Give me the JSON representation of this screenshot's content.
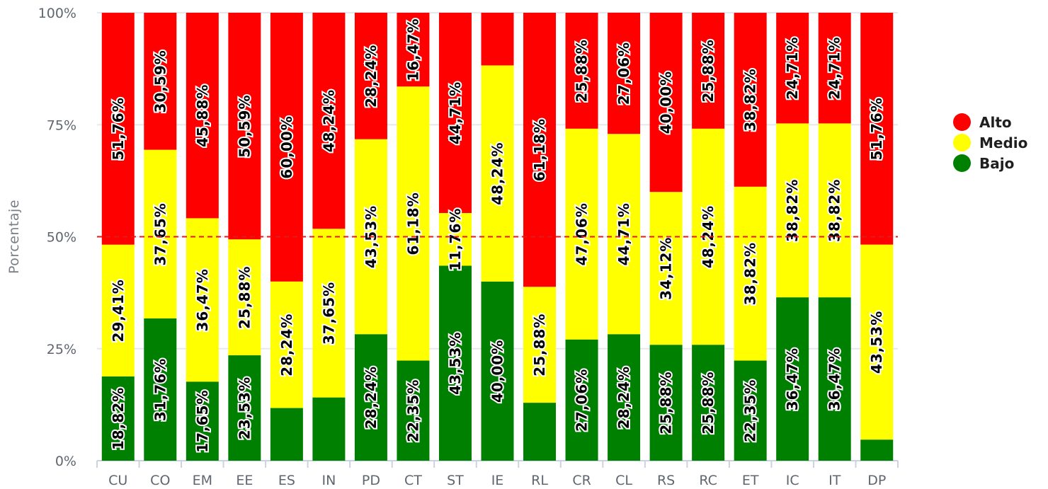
{
  "chart_data": {
    "type": "bar",
    "stacked": true,
    "percent_stacked": true,
    "title": "",
    "xlabel": "",
    "ylabel": "Porcentaje",
    "ylim": [
      0,
      100
    ],
    "y_ticks": [
      "0%",
      "25%",
      "50%",
      "75%",
      "100%"
    ],
    "reference_line": {
      "value": 50,
      "style": "dashed",
      "color": "#e31a1c"
    },
    "categories": [
      "CU",
      "CO",
      "EM",
      "EE",
      "ES",
      "IN",
      "PD",
      "CT",
      "ST",
      "IE",
      "RL",
      "CR",
      "CL",
      "RS",
      "RC",
      "ET",
      "IC",
      "IT",
      "DP"
    ],
    "legend_position": "right",
    "series": [
      {
        "name": "Bajo",
        "color": "#008000",
        "values": [
          18.82,
          31.76,
          17.65,
          23.53,
          11.76,
          14.12,
          28.24,
          22.35,
          43.53,
          40.0,
          12.94,
          27.06,
          28.24,
          25.88,
          25.88,
          22.35,
          36.47,
          36.47,
          4.71
        ],
        "labels": [
          "18,82%",
          "31,76%",
          "17,65%",
          "23,53%",
          "",
          "",
          "28,24%",
          "22,35%",
          "43,53%",
          "40,00%",
          "",
          "27,06%",
          "28,24%",
          "25,88%",
          "25,88%",
          "22,35%",
          "36,47%",
          "36,47%",
          ""
        ]
      },
      {
        "name": "Medio",
        "color": "#ffff00",
        "values": [
          29.41,
          37.65,
          36.47,
          25.88,
          28.24,
          37.65,
          43.53,
          61.18,
          11.76,
          48.24,
          25.88,
          47.06,
          44.71,
          34.12,
          48.24,
          38.82,
          38.82,
          38.82,
          43.53
        ],
        "labels": [
          "29,41%",
          "37,65%",
          "36,47%",
          "25,88%",
          "28,24%",
          "37,65%",
          "43,53%",
          "61,18%",
          "11,76%",
          "48,24%",
          "25,88%",
          "47,06%",
          "44,71%",
          "34,12%",
          "48,24%",
          "38,82%",
          "38,82%",
          "38,82%",
          "43,53%"
        ]
      },
      {
        "name": "Alto",
        "color": "#ff0000",
        "values": [
          51.76,
          30.59,
          45.88,
          50.59,
          60.0,
          48.24,
          28.24,
          16.47,
          44.71,
          11.76,
          61.18,
          25.88,
          27.06,
          40.0,
          25.88,
          38.82,
          24.71,
          24.71,
          51.76
        ],
        "labels": [
          "51,76%",
          "30,59%",
          "45,88%",
          "50,59%",
          "60,00%",
          "48,24%",
          "28,24%",
          "16,47%",
          "44,71%",
          "",
          "61,18%",
          "25,88%",
          "27,06%",
          "40,00%",
          "25,88%",
          "38,82%",
          "24,71%",
          "24,71%",
          "51,76%"
        ]
      }
    ],
    "legend_order": [
      "Alto",
      "Medio",
      "Bajo"
    ]
  }
}
